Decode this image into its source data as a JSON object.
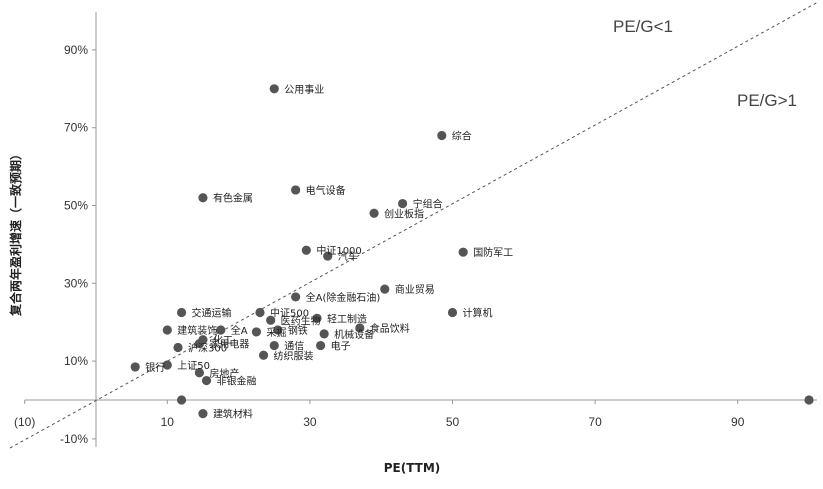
{
  "chart_data": {
    "type": "scatter",
    "xlabel": "PE(TTM)",
    "ylabel": "复合两年盈利增速（一致预期）",
    "xlim": [
      -10,
      100
    ],
    "ylim": [
      -10,
      100
    ],
    "x_ticks": [
      {
        "v": -10,
        "t": "(10)"
      },
      {
        "v": 10,
        "t": "10"
      },
      {
        "v": 30,
        "t": "30"
      },
      {
        "v": 50,
        "t": "50"
      },
      {
        "v": 70,
        "t": "70"
      },
      {
        "v": 90,
        "t": "90"
      }
    ],
    "y_ticks": [
      {
        "v": -10,
        "t": "-10%"
      },
      {
        "v": 10,
        "t": "10%"
      },
      {
        "v": 30,
        "t": "30%"
      },
      {
        "v": 50,
        "t": "50%"
      },
      {
        "v": 70,
        "t": "70%"
      },
      {
        "v": 90,
        "t": "90%"
      }
    ],
    "grid": false,
    "reference_line": {
      "label_above": "PE/G<1",
      "label_below": "PE/G>1",
      "style": "dashed",
      "slope": 1
    },
    "points": [
      {
        "label": "公用事业",
        "x": 25,
        "y": 80
      },
      {
        "label": "综合",
        "x": 48.5,
        "y": 68
      },
      {
        "label": "有色金属",
        "x": 15,
        "y": 52
      },
      {
        "label": "电气设备",
        "x": 28,
        "y": 54
      },
      {
        "label": "宁组合",
        "x": 43,
        "y": 50.5
      },
      {
        "label": "创业板指",
        "x": 39,
        "y": 48
      },
      {
        "label": "中证1000",
        "x": 29.5,
        "y": 38.5
      },
      {
        "label": "汽车",
        "x": 32.5,
        "y": 37
      },
      {
        "label": "国防军工",
        "x": 51.5,
        "y": 38
      },
      {
        "label": "商业贸易",
        "x": 40.5,
        "y": 28.5
      },
      {
        "label": "全A(除金融石油)",
        "x": 28,
        "y": 26.5
      },
      {
        "label": "计算机",
        "x": 50,
        "y": 22.5
      },
      {
        "label": "交通运输",
        "x": 12,
        "y": 22.5
      },
      {
        "label": "中证500",
        "x": 23,
        "y": 22.5
      },
      {
        "label": "医药生物",
        "x": 24.5,
        "y": 20.5
      },
      {
        "label": "轻工制造",
        "x": 31,
        "y": 21
      },
      {
        "label": "食品饮料",
        "x": 37,
        "y": 18.5
      },
      {
        "label": "机械设备",
        "x": 32,
        "y": 17
      },
      {
        "label": "建筑装饰",
        "x": 10,
        "y": 18
      },
      {
        "label": "全A",
        "x": 17.5,
        "y": 18
      },
      {
        "label": "化工",
        "x": 15,
        "y": 15.5
      },
      {
        "label": "家用电器",
        "x": 14.5,
        "y": 14.5
      },
      {
        "label": "采掘",
        "x": 22.5,
        "y": 17.5
      },
      {
        "label": "钢铁",
        "x": 25.5,
        "y": 18
      },
      {
        "label": "沪深300",
        "x": 11.5,
        "y": 13.5
      },
      {
        "label": "通信",
        "x": 25,
        "y": 14
      },
      {
        "label": "电子",
        "x": 31.5,
        "y": 14
      },
      {
        "label": "纺织服装",
        "x": 23.5,
        "y": 11.5
      },
      {
        "label": "银行",
        "x": 5.5,
        "y": 8.5
      },
      {
        "label": "上证50",
        "x": 10,
        "y": 9
      },
      {
        "label": "房地产",
        "x": 14.5,
        "y": 7
      },
      {
        "label": "非银金融",
        "x": 15.5,
        "y": 5
      },
      {
        "label": "",
        "x": 12,
        "y": 0
      },
      {
        "label": "建筑材料",
        "x": 15,
        "y": -3.5
      },
      {
        "label": "",
        "x": 100,
        "y": 0
      }
    ]
  }
}
